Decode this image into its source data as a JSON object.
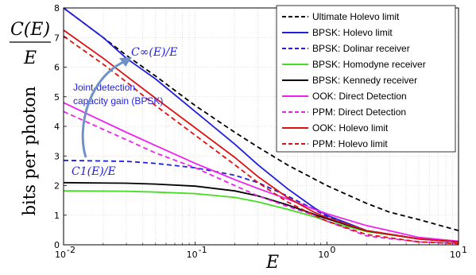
{
  "chart_data": {
    "type": "line",
    "xscale": "log",
    "xlim": [
      0.01,
      10
    ],
    "ylim": [
      0,
      8
    ],
    "xticks": [
      {
        "v": 0.01,
        "base": "10",
        "exp": "-2"
      },
      {
        "v": 0.1,
        "base": "10",
        "exp": "-1"
      },
      {
        "v": 1,
        "base": "10",
        "exp": "0"
      },
      {
        "v": 10,
        "base": "10",
        "exp": "1"
      }
    ],
    "yticks": [
      0,
      1,
      2,
      3,
      4,
      5,
      6,
      7,
      8
    ],
    "grid": true,
    "legend_position": "top-right",
    "xlabel": "E",
    "ylabel": "bits per photon",
    "ylabel_fraction": {
      "numerator": "C(E)",
      "denominator": "E"
    },
    "annotations": {
      "c_inf": "C∞(E)/E",
      "c_one": "C1(E)/E",
      "gain_line1": "Joint-detection",
      "gain_line2": "capacity gain (BPSK)"
    },
    "series": [
      {
        "name": "Ultimate Holevo limit",
        "color": "#000000",
        "dash": true,
        "points": [
          [
            0.01,
            8.0
          ],
          [
            0.02,
            7.0
          ],
          [
            0.03,
            6.4
          ],
          [
            0.05,
            5.7
          ],
          [
            0.1,
            4.7
          ],
          [
            0.2,
            3.8
          ],
          [
            0.3,
            3.3
          ],
          [
            0.5,
            2.7
          ],
          [
            1,
            2.0
          ],
          [
            2,
            1.4
          ],
          [
            3,
            1.1
          ],
          [
            5,
            0.85
          ],
          [
            10,
            0.48
          ]
        ]
      },
      {
        "name": "BPSK: Holevo limit",
        "color": "#1f1fdd",
        "dash": false,
        "points": [
          [
            0.01,
            8.0
          ],
          [
            0.02,
            7.0
          ],
          [
            0.03,
            6.3
          ],
          [
            0.05,
            5.6
          ],
          [
            0.1,
            4.5
          ],
          [
            0.2,
            3.4
          ],
          [
            0.3,
            2.7
          ],
          [
            0.5,
            1.9
          ],
          [
            0.8,
            1.25
          ],
          [
            1,
            1.0
          ],
          [
            2,
            0.48
          ],
          [
            5,
            0.2
          ],
          [
            10,
            0.1
          ]
        ]
      },
      {
        "name": "BPSK: Dolinar receiver",
        "color": "#1f1fdd",
        "dash": true,
        "points": [
          [
            0.01,
            2.85
          ],
          [
            0.03,
            2.82
          ],
          [
            0.05,
            2.75
          ],
          [
            0.1,
            2.6
          ],
          [
            0.2,
            2.35
          ],
          [
            0.3,
            2.1
          ],
          [
            0.5,
            1.65
          ],
          [
            0.8,
            1.2
          ],
          [
            1,
            0.95
          ],
          [
            2,
            0.48
          ],
          [
            5,
            0.2
          ],
          [
            10,
            0.1
          ]
        ]
      },
      {
        "name": "BPSK: Homodyne receiver",
        "color": "#44dd22",
        "dash": false,
        "points": [
          [
            0.01,
            1.82
          ],
          [
            0.03,
            1.81
          ],
          [
            0.05,
            1.78
          ],
          [
            0.1,
            1.73
          ],
          [
            0.2,
            1.6
          ],
          [
            0.3,
            1.45
          ],
          [
            0.5,
            1.2
          ],
          [
            0.8,
            0.95
          ],
          [
            1,
            0.8
          ],
          [
            2,
            0.45
          ],
          [
            5,
            0.2
          ],
          [
            10,
            0.1
          ]
        ]
      },
      {
        "name": "BPSK: Kennedy receiver",
        "color": "#000000",
        "dash": false,
        "points": [
          [
            0.01,
            2.1
          ],
          [
            0.03,
            2.08
          ],
          [
            0.05,
            2.05
          ],
          [
            0.1,
            1.98
          ],
          [
            0.2,
            1.82
          ],
          [
            0.3,
            1.65
          ],
          [
            0.5,
            1.35
          ],
          [
            0.8,
            1.03
          ],
          [
            1,
            0.88
          ],
          [
            2,
            0.47
          ],
          [
            5,
            0.2
          ],
          [
            10,
            0.1
          ]
        ]
      },
      {
        "name": "OOK: Direct Detection",
        "color": "#ee22ee",
        "dash": false,
        "points": [
          [
            0.01,
            4.8
          ],
          [
            0.03,
            3.8
          ],
          [
            0.05,
            3.35
          ],
          [
            0.1,
            2.75
          ],
          [
            0.2,
            2.2
          ],
          [
            0.3,
            1.9
          ],
          [
            0.5,
            1.55
          ],
          [
            0.8,
            1.2
          ],
          [
            1,
            1.05
          ],
          [
            2,
            0.65
          ],
          [
            5,
            0.25
          ],
          [
            10,
            0.12
          ]
        ]
      },
      {
        "name": "PPM: Direct Detection",
        "color": "#ee22ee",
        "dash": true,
        "points": [
          [
            0.01,
            4.5
          ],
          [
            0.03,
            3.55
          ],
          [
            0.05,
            3.1
          ],
          [
            0.1,
            2.6
          ],
          [
            0.2,
            2.0
          ],
          [
            0.3,
            1.65
          ],
          [
            0.5,
            1.3
          ],
          [
            0.8,
            1.0
          ],
          [
            1,
            0.8
          ],
          [
            2,
            0.3
          ],
          [
            5,
            0.1
          ],
          [
            10,
            0.05
          ]
        ]
      },
      {
        "name": "OOK: Holevo limit",
        "color": "#dd1111",
        "dash": false,
        "points": [
          [
            0.01,
            7.25
          ],
          [
            0.02,
            6.3
          ],
          [
            0.03,
            5.7
          ],
          [
            0.05,
            4.95
          ],
          [
            0.1,
            3.95
          ],
          [
            0.2,
            2.95
          ],
          [
            0.3,
            2.3
          ],
          [
            0.5,
            1.6
          ],
          [
            0.8,
            1.1
          ],
          [
            1,
            0.92
          ],
          [
            2,
            0.48
          ],
          [
            5,
            0.2
          ],
          [
            10,
            0.1
          ]
        ]
      },
      {
        "name": "PPM: Holevo limit",
        "color": "#dd1111",
        "dash": true,
        "points": [
          [
            0.01,
            7.05
          ],
          [
            0.02,
            6.1
          ],
          [
            0.03,
            5.5
          ],
          [
            0.05,
            4.7
          ],
          [
            0.1,
            3.7
          ],
          [
            0.2,
            2.7
          ],
          [
            0.3,
            2.1
          ],
          [
            0.5,
            1.45
          ],
          [
            0.8,
            1.0
          ],
          [
            1,
            0.8
          ],
          [
            2,
            0.35
          ],
          [
            5,
            0.1
          ],
          [
            10,
            0.04
          ]
        ]
      }
    ]
  }
}
